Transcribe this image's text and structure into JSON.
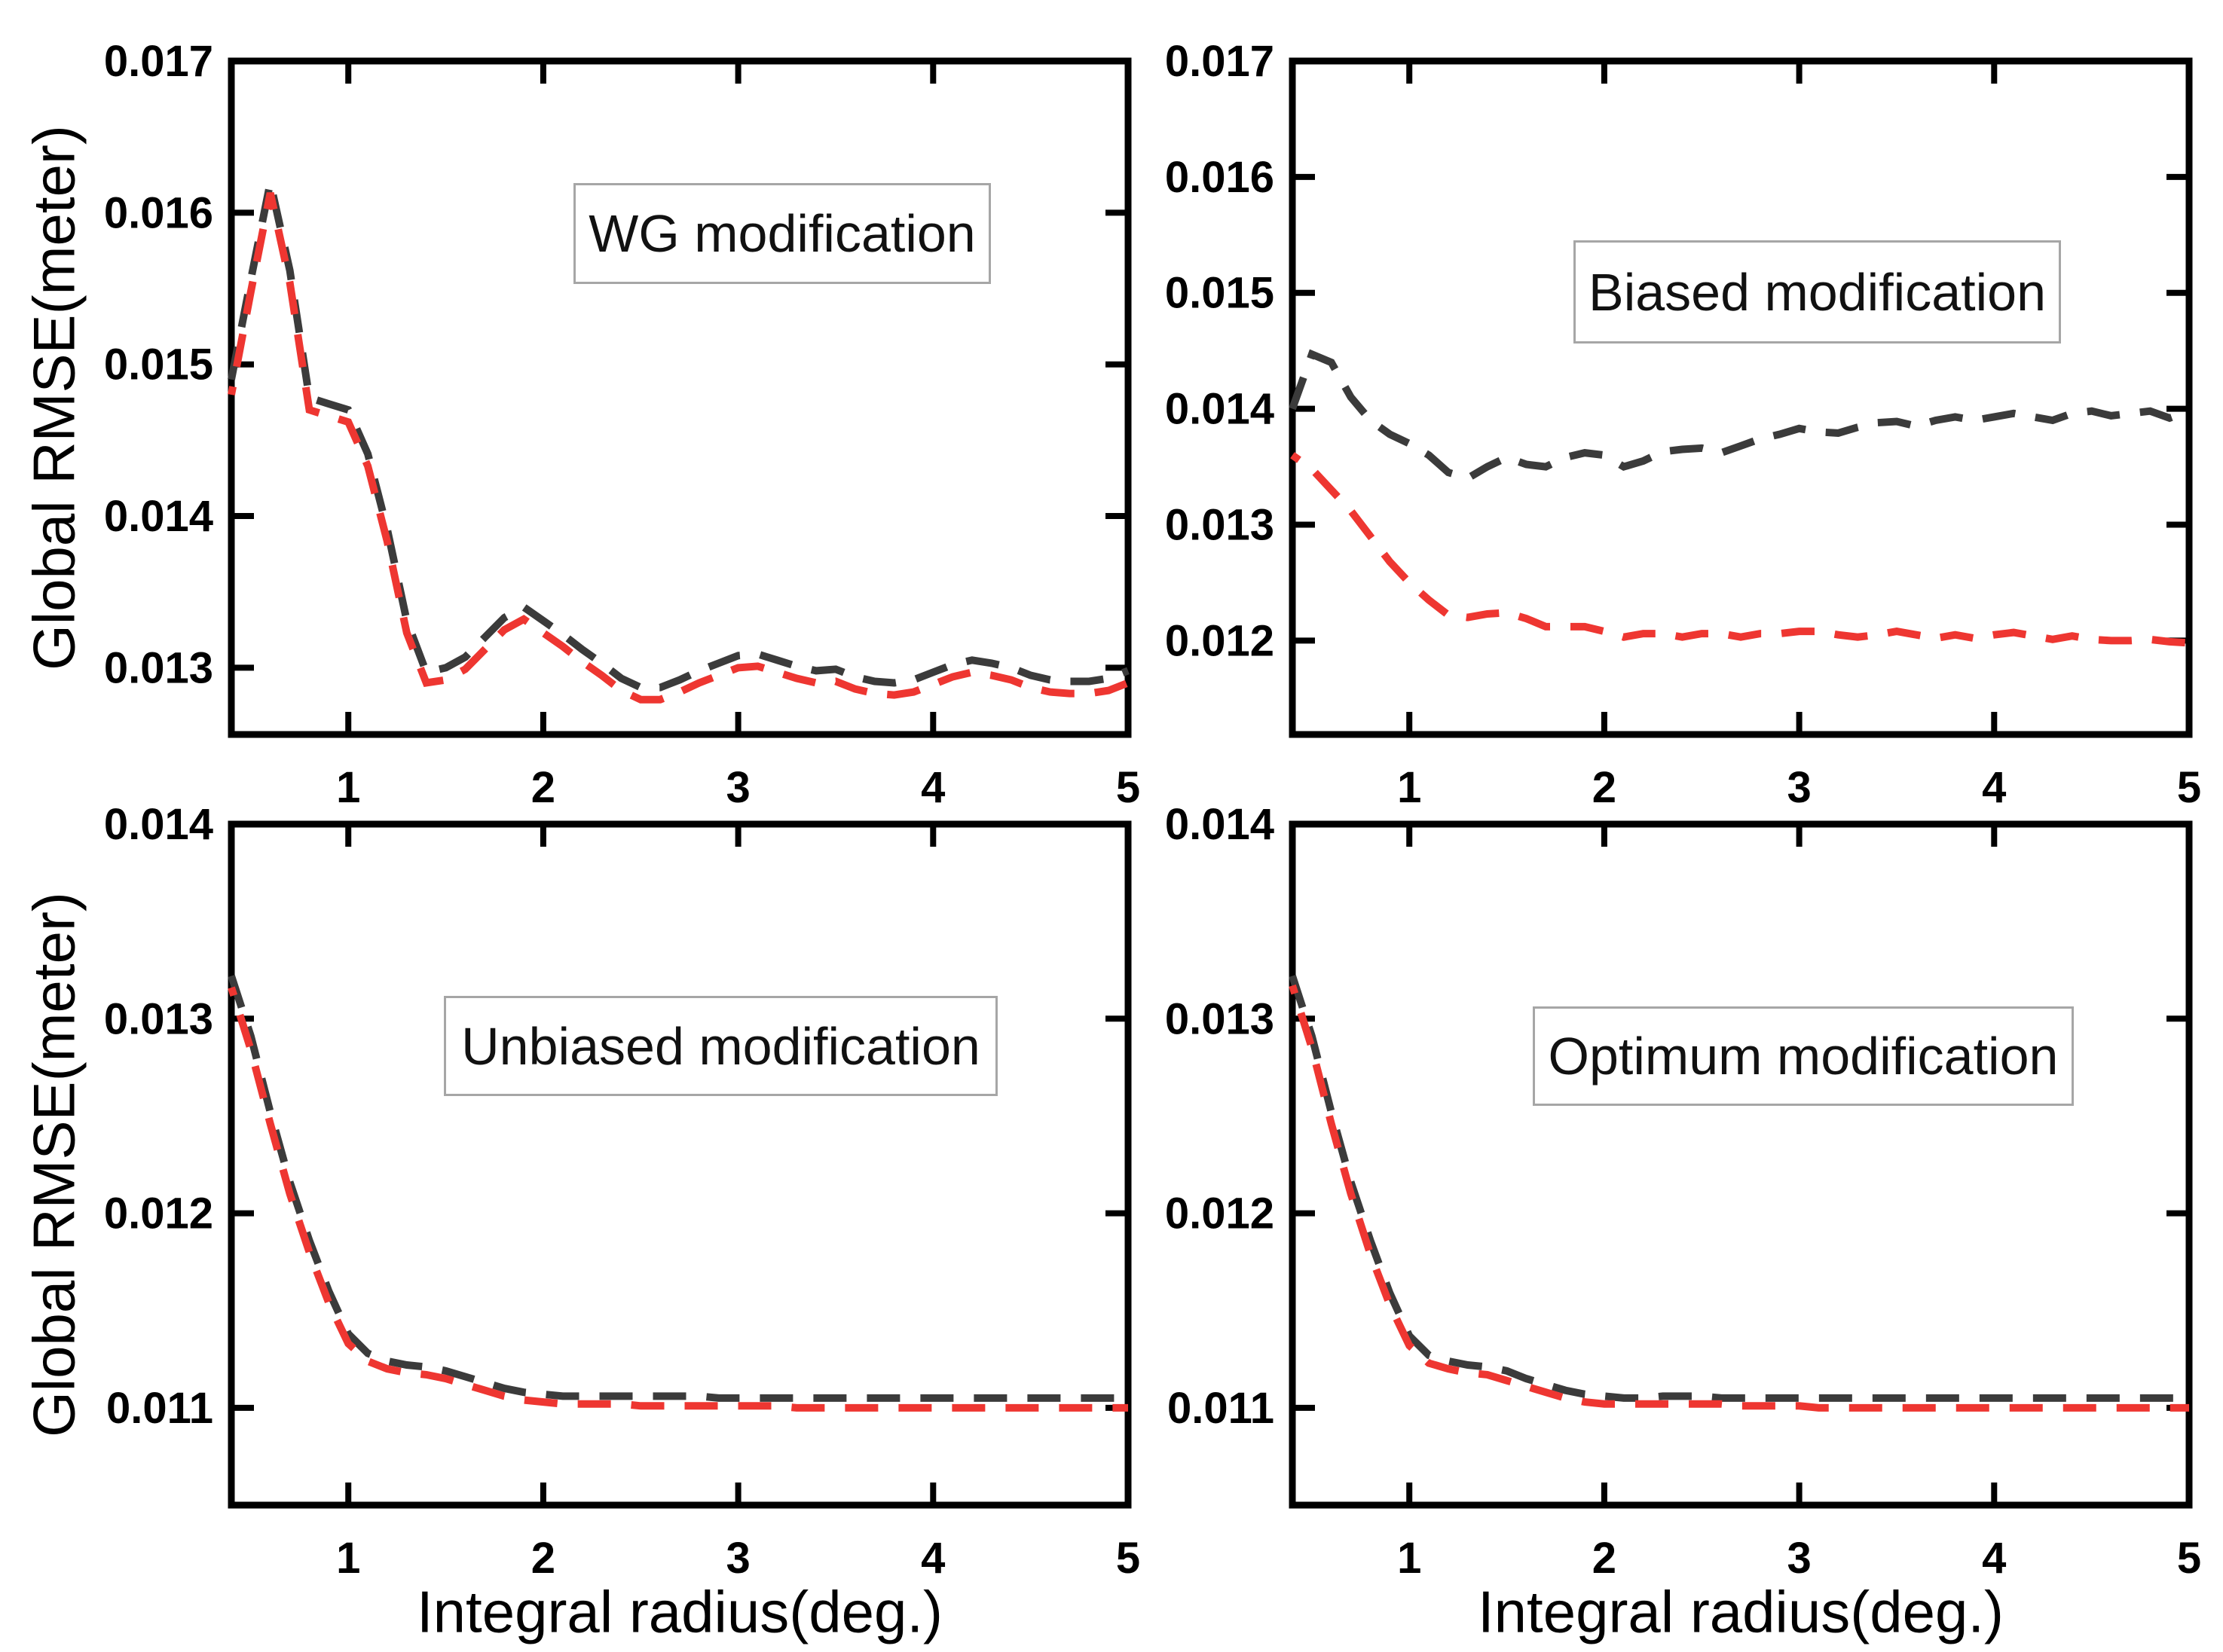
{
  "figure": {
    "y_axis_label": "Global RMSE(meter)",
    "x_axis_label": "Integral radius(deg.)",
    "background_color": "#ffffff",
    "axis_color": "#000000",
    "series_colors": {
      "dark": "#3b3b3b",
      "red": "#ee3631"
    }
  },
  "chart_data": [
    {
      "type": "line",
      "title": "WG modification",
      "xlabel": "Integral radius(deg.)",
      "ylabel": "Global RMSE(meter)",
      "xlim": [
        0.4,
        5.0
      ],
      "ylim": [
        0.01256,
        0.017
      ],
      "grid": "off",
      "legend": "none",
      "line_style": "dashed",
      "x_ticks": {
        "values": [
          1,
          2,
          3,
          4,
          5
        ],
        "labels": [
          "1",
          "2",
          "3",
          "4",
          "5"
        ]
      },
      "y_ticks": {
        "values": [
          0.013,
          0.014,
          0.015,
          0.016,
          0.017
        ],
        "labels": [
          "0.013",
          "0.014",
          "0.015",
          "0.016",
          "0.017"
        ]
      },
      "x": [
        0.4,
        0.5,
        0.6,
        0.7,
        0.8,
        0.9,
        1.0,
        1.1,
        1.2,
        1.3,
        1.4,
        1.5,
        1.6,
        1.7,
        1.8,
        1.9,
        2.0,
        2.1,
        2.2,
        2.3,
        2.4,
        2.5,
        2.6,
        2.7,
        2.8,
        2.9,
        3.0,
        3.1,
        3.2,
        3.3,
        3.4,
        3.5,
        3.6,
        3.7,
        3.8,
        3.9,
        4.0,
        4.1,
        4.2,
        4.3,
        4.4,
        4.5,
        4.6,
        4.7,
        4.8,
        4.9,
        5.0
      ],
      "series": [
        {
          "name": "black dashed",
          "color": "#3b3b3b",
          "values": [
            0.0149,
            0.01556,
            0.0162,
            0.01562,
            0.01478,
            0.01474,
            0.0147,
            0.01441,
            0.01391,
            0.01331,
            0.01297,
            0.013,
            0.01307,
            0.0132,
            0.01333,
            0.0134,
            0.01331,
            0.01322,
            0.01312,
            0.01303,
            0.01293,
            0.01287,
            0.01287,
            0.01292,
            0.01298,
            0.01303,
            0.01308,
            0.01309,
            0.01305,
            0.01301,
            0.01298,
            0.01299,
            0.01294,
            0.01291,
            0.0129,
            0.01292,
            0.01297,
            0.01302,
            0.01305,
            0.01303,
            0.013,
            0.01295,
            0.01292,
            0.01291,
            0.01291,
            0.01293,
            0.01298
          ]
        },
        {
          "name": "red dashed",
          "color": "#ee3631",
          "values": [
            0.0148,
            0.01548,
            0.01613,
            0.01554,
            0.0147,
            0.01466,
            0.01462,
            0.01433,
            0.01383,
            0.01323,
            0.0129,
            0.01292,
            0.01299,
            0.01312,
            0.01325,
            0.01332,
            0.01323,
            0.01314,
            0.01304,
            0.01295,
            0.01285,
            0.01279,
            0.01279,
            0.01284,
            0.0129,
            0.01295,
            0.013,
            0.01301,
            0.01297,
            0.01293,
            0.0129,
            0.01291,
            0.01286,
            0.01283,
            0.01282,
            0.01284,
            0.01289,
            0.01294,
            0.01297,
            0.01295,
            0.01292,
            0.01287,
            0.01284,
            0.01283,
            0.01283,
            0.01285,
            0.0129
          ]
        }
      ]
    },
    {
      "type": "line",
      "title": "Biased modification",
      "xlabel": "Integral radius(deg.)",
      "ylabel": "Global RMSE(meter)",
      "xlim": [
        0.4,
        5.0
      ],
      "ylim": [
        0.01119,
        0.017
      ],
      "grid": "off",
      "legend": "none",
      "line_style": "dashed",
      "x_ticks": {
        "values": [
          1,
          2,
          3,
          4,
          5
        ],
        "labels": [
          "1",
          "2",
          "3",
          "4",
          "5"
        ]
      },
      "y_ticks": {
        "values": [
          0.012,
          0.013,
          0.014,
          0.015,
          0.016,
          0.017
        ],
        "labels": [
          "0.012",
          "0.013",
          "0.014",
          "0.015",
          "0.016",
          "0.017"
        ]
      },
      "x": [
        0.4,
        0.5,
        0.6,
        0.7,
        0.8,
        0.9,
        1.0,
        1.1,
        1.2,
        1.3,
        1.4,
        1.5,
        1.6,
        1.7,
        1.8,
        1.9,
        2.0,
        2.1,
        2.2,
        2.3,
        2.4,
        2.5,
        2.6,
        2.7,
        2.8,
        2.9,
        3.0,
        3.1,
        3.2,
        3.3,
        3.4,
        3.5,
        3.6,
        3.7,
        3.8,
        3.9,
        4.0,
        4.1,
        4.2,
        4.3,
        4.4,
        4.5,
        4.6,
        4.7,
        4.8,
        4.9,
        5.0
      ],
      "series": [
        {
          "name": "black dashed",
          "color": "#3b3b3b",
          "values": [
            0.014,
            0.01447,
            0.0144,
            0.0141,
            0.0139,
            0.01378,
            0.0137,
            0.0136,
            0.01345,
            0.0134,
            0.0135,
            0.01358,
            0.01352,
            0.0135,
            0.01358,
            0.01362,
            0.0136,
            0.0135,
            0.01355,
            0.01363,
            0.01365,
            0.01366,
            0.01362,
            0.01368,
            0.01374,
            0.01378,
            0.01383,
            0.0138,
            0.01379,
            0.01384,
            0.01388,
            0.01389,
            0.01385,
            0.0139,
            0.01393,
            0.0139,
            0.01393,
            0.01396,
            0.01393,
            0.0139,
            0.01396,
            0.01398,
            0.01394,
            0.01396,
            0.01398,
            0.01392,
            0.01398
          ]
        },
        {
          "name": "red dashed",
          "color": "#ee3631",
          "values": [
            0.0136,
            0.01348,
            0.0133,
            0.01312,
            0.0129,
            0.01268,
            0.0125,
            0.01235,
            0.01222,
            0.0122,
            0.01223,
            0.01224,
            0.01219,
            0.01212,
            0.01212,
            0.01212,
            0.01208,
            0.01203,
            0.01206,
            0.01206,
            0.01203,
            0.01206,
            0.01206,
            0.01203,
            0.01206,
            0.01206,
            0.01208,
            0.01208,
            0.01205,
            0.01203,
            0.01205,
            0.01208,
            0.01205,
            0.01202,
            0.01205,
            0.01202,
            0.01205,
            0.01207,
            0.01204,
            0.01201,
            0.01204,
            0.01201,
            0.012,
            0.012,
            0.01201,
            0.01199,
            0.01198
          ]
        }
      ]
    },
    {
      "type": "line",
      "title": "Unbiased modification",
      "xlabel": "Integral radius(deg.)",
      "ylabel": "Global RMSE(meter)",
      "xlim": [
        0.4,
        5.0
      ],
      "ylim": [
        0.0105,
        0.014
      ],
      "grid": "off",
      "legend": "none",
      "line_style": "dashed",
      "x_ticks": {
        "values": [
          1,
          2,
          3,
          4,
          5
        ],
        "labels": [
          "1",
          "2",
          "3",
          "4",
          "5"
        ]
      },
      "y_ticks": {
        "values": [
          0.011,
          0.012,
          0.013,
          0.014
        ],
        "labels": [
          "0.011",
          "0.012",
          "0.013",
          "0.014"
        ]
      },
      "x": [
        0.4,
        0.5,
        0.6,
        0.7,
        0.8,
        0.9,
        1.0,
        1.1,
        1.2,
        1.3,
        1.4,
        1.5,
        1.6,
        1.7,
        1.8,
        1.9,
        2.0,
        2.1,
        2.2,
        2.3,
        2.4,
        2.5,
        2.6,
        2.7,
        2.8,
        2.9,
        3.0,
        3.1,
        3.2,
        3.3,
        3.4,
        3.5,
        3.6,
        3.7,
        3.8,
        3.9,
        4.0,
        4.1,
        4.2,
        4.3,
        4.4,
        4.5,
        4.6,
        4.7,
        4.8,
        4.9,
        5.0
      ],
      "series": [
        {
          "name": "black dashed",
          "color": "#3b3b3b",
          "values": [
            0.01322,
            0.01291,
            0.01252,
            0.01216,
            0.01186,
            0.0116,
            0.01138,
            0.01128,
            0.01124,
            0.01122,
            0.01121,
            0.01119,
            0.01116,
            0.01113,
            0.0111,
            0.01108,
            0.01107,
            0.01106,
            0.01106,
            0.01106,
            0.01106,
            0.01106,
            0.01106,
            0.01106,
            0.01106,
            0.01105,
            0.01105,
            0.01105,
            0.01105,
            0.01105,
            0.01105,
            0.01105,
            0.01105,
            0.01105,
            0.01105,
            0.01105,
            0.01105,
            0.01105,
            0.01105,
            0.01105,
            0.01105,
            0.01105,
            0.01105,
            0.01105,
            0.01105,
            0.01105,
            0.01105
          ]
        },
        {
          "name": "red dashed",
          "color": "#ee3631",
          "values": [
            0.01316,
            0.01284,
            0.01246,
            0.0121,
            0.0118,
            0.01154,
            0.01133,
            0.01124,
            0.0112,
            0.01118,
            0.01117,
            0.01115,
            0.01112,
            0.01109,
            0.01106,
            0.01104,
            0.01103,
            0.01102,
            0.01102,
            0.01102,
            0.01102,
            0.01101,
            0.01101,
            0.01101,
            0.01101,
            0.01101,
            0.01101,
            0.01101,
            0.01101,
            0.011,
            0.011,
            0.011,
            0.011,
            0.011,
            0.011,
            0.011,
            0.011,
            0.011,
            0.011,
            0.011,
            0.011,
            0.011,
            0.011,
            0.011,
            0.011,
            0.011,
            0.011
          ]
        }
      ]
    },
    {
      "type": "line",
      "title": "Optimum modification",
      "xlabel": "Integral radius(deg.)",
      "ylabel": "Global RMSE(meter)",
      "xlim": [
        0.4,
        5.0
      ],
      "ylim": [
        0.0105,
        0.014
      ],
      "grid": "off",
      "legend": "none",
      "line_style": "dashed",
      "x_ticks": {
        "values": [
          1,
          2,
          3,
          4,
          5
        ],
        "labels": [
          "1",
          "2",
          "3",
          "4",
          "5"
        ]
      },
      "y_ticks": {
        "values": [
          0.011,
          0.012,
          0.013,
          0.014
        ],
        "labels": [
          "0.011",
          "0.012",
          "0.013",
          "0.014"
        ]
      },
      "x": [
        0.4,
        0.5,
        0.6,
        0.7,
        0.8,
        0.9,
        1.0,
        1.1,
        1.2,
        1.3,
        1.4,
        1.5,
        1.6,
        1.7,
        1.8,
        1.9,
        2.0,
        2.1,
        2.2,
        2.3,
        2.4,
        2.5,
        2.6,
        2.7,
        2.8,
        2.9,
        3.0,
        3.1,
        3.2,
        3.3,
        3.4,
        3.5,
        3.6,
        3.7,
        3.8,
        3.9,
        4.0,
        4.1,
        4.2,
        4.3,
        4.4,
        4.5,
        4.6,
        4.7,
        4.8,
        4.9,
        5.0
      ],
      "series": [
        {
          "name": "black dashed",
          "color": "#3b3b3b",
          "values": [
            0.01322,
            0.01291,
            0.01252,
            0.01216,
            0.01186,
            0.01159,
            0.01137,
            0.01127,
            0.01124,
            0.01122,
            0.01121,
            0.01119,
            0.01115,
            0.01112,
            0.01109,
            0.01107,
            0.01106,
            0.01105,
            0.01105,
            0.01106,
            0.01106,
            0.01106,
            0.01105,
            0.01105,
            0.01105,
            0.01105,
            0.01105,
            0.01105,
            0.01105,
            0.01105,
            0.01105,
            0.01105,
            0.01105,
            0.01105,
            0.01105,
            0.01105,
            0.01105,
            0.01105,
            0.01105,
            0.01105,
            0.01105,
            0.01105,
            0.01105,
            0.01105,
            0.01105,
            0.01105,
            0.01105
          ]
        },
        {
          "name": "red dashed",
          "color": "#ee3631",
          "values": [
            0.01317,
            0.01285,
            0.01246,
            0.0121,
            0.01179,
            0.01153,
            0.01132,
            0.01123,
            0.0112,
            0.01118,
            0.01117,
            0.01114,
            0.01111,
            0.01108,
            0.01105,
            0.01103,
            0.01102,
            0.01102,
            0.01102,
            0.01102,
            0.01102,
            0.01102,
            0.01102,
            0.01101,
            0.01101,
            0.01101,
            0.01101,
            0.011,
            0.011,
            0.011,
            0.011,
            0.011,
            0.011,
            0.011,
            0.011,
            0.011,
            0.011,
            0.011,
            0.011,
            0.011,
            0.011,
            0.011,
            0.011,
            0.011,
            0.011,
            0.011,
            0.011
          ]
        }
      ]
    }
  ]
}
